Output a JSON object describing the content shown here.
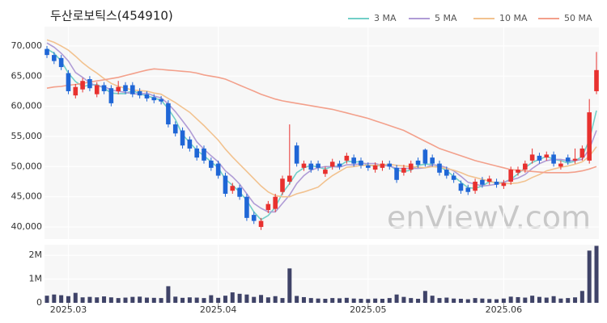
{
  "chart_data": {
    "type": "candlestick",
    "title": "두산로보틱스(454910)",
    "watermark": "enViewV.com",
    "categories": [
      null,
      null,
      null,
      "2025.03",
      null,
      null,
      null,
      null,
      null,
      null,
      null,
      null,
      null,
      null,
      null,
      null,
      null,
      null,
      null,
      null,
      null,
      null,
      null,
      null,
      "2025.04",
      null,
      null,
      null,
      null,
      null,
      null,
      null,
      null,
      null,
      null,
      null,
      null,
      null,
      null,
      null,
      null,
      null,
      null,
      null,
      null,
      "2025.05",
      null,
      null,
      null,
      null,
      null,
      null,
      null,
      null,
      null,
      null,
      null,
      null,
      null,
      null,
      null,
      null,
      null,
      null,
      "2025.06",
      null,
      null,
      null,
      null,
      null,
      null,
      null,
      null,
      null,
      null,
      null,
      null,
      null
    ],
    "up_color": "#e8312f",
    "down_color": "#1f66d6",
    "ohlc": {
      "open": [
        69500,
        68500,
        68000,
        65500,
        61800,
        62800,
        64500,
        62000,
        63500,
        63000,
        62500,
        63500,
        63500,
        62500,
        62000,
        61500,
        61200,
        60500,
        57000,
        56000,
        54500,
        53000,
        53000,
        51000,
        50500,
        48500,
        46000,
        46500,
        45000,
        42000,
        40000,
        42800,
        43000,
        45800,
        47500,
        53500,
        49800,
        50500,
        50500,
        48800,
        50000,
        50500,
        51000,
        51500,
        51000,
        50200,
        49500,
        49800,
        50500,
        49800,
        49000,
        49500,
        51000,
        52800,
        51500,
        50500,
        49500,
        48500,
        47200,
        46500,
        46000,
        47800,
        47500,
        47500,
        46800,
        47500,
        49000,
        49500,
        51000,
        51800,
        51500,
        52000,
        50000,
        51500,
        51000,
        51500,
        51000,
        62500
      ],
      "high": [
        70000,
        69000,
        68500,
        66000,
        63700,
        64700,
        65000,
        64000,
        64000,
        63500,
        64200,
        64000,
        64000,
        63000,
        62500,
        62000,
        61700,
        61000,
        57500,
        56500,
        55000,
        53500,
        53500,
        51500,
        51000,
        49000,
        47300,
        47000,
        45500,
        42500,
        41500,
        44300,
        45500,
        48500,
        57000,
        54000,
        51000,
        51000,
        51000,
        50000,
        51300,
        51000,
        52300,
        52000,
        51500,
        50700,
        50700,
        51000,
        51000,
        50300,
        50300,
        51000,
        51500,
        53000,
        52000,
        51000,
        50000,
        49000,
        47700,
        47000,
        48000,
        48300,
        48500,
        48000,
        47800,
        50000,
        50000,
        51000,
        53000,
        52300,
        52500,
        52500,
        51000,
        52000,
        53000,
        53500,
        61200,
        69000
      ],
      "low": [
        68000,
        67000,
        66000,
        62000,
        61300,
        62300,
        62500,
        61500,
        62000,
        60000,
        62000,
        62000,
        61500,
        61300,
        60800,
        60500,
        60300,
        56500,
        55000,
        53000,
        52500,
        51000,
        50500,
        49300,
        48000,
        45000,
        45500,
        44500,
        41000,
        40500,
        39500,
        42300,
        42500,
        45300,
        47000,
        50000,
        49300,
        49000,
        49300,
        48300,
        49500,
        49500,
        50500,
        50000,
        49700,
        49300,
        49000,
        49300,
        49500,
        47300,
        48500,
        49000,
        49800,
        50000,
        50000,
        48500,
        48000,
        47300,
        45500,
        45300,
        45500,
        46500,
        47000,
        46500,
        46300,
        47000,
        48500,
        49000,
        50500,
        50500,
        51000,
        50000,
        49500,
        50300,
        50500,
        51000,
        50500,
        62000
      ],
      "close": [
        68500,
        67500,
        66500,
        62500,
        63200,
        64200,
        63000,
        63500,
        62500,
        60500,
        63200,
        62500,
        62000,
        61800,
        61300,
        61000,
        60800,
        57000,
        55500,
        53500,
        53000,
        51500,
        51000,
        49800,
        48500,
        45500,
        46800,
        45000,
        41500,
        41000,
        41000,
        43800,
        45000,
        48000,
        48500,
        50500,
        50500,
        49500,
        49800,
        49500,
        50800,
        50000,
        51800,
        50500,
        50200,
        49800,
        50200,
        50500,
        50000,
        47800,
        49800,
        50500,
        50300,
        50500,
        50500,
        49000,
        48500,
        47800,
        46000,
        45800,
        47500,
        47000,
        48000,
        47000,
        47300,
        49500,
        49500,
        50500,
        52000,
        51000,
        52000,
        50500,
        50500,
        50800,
        51300,
        53000,
        59000,
        66000
      ]
    },
    "series": [
      {
        "name": "3 MA",
        "color": "#72cfc8",
        "values": [
          69500,
          68800,
          67500,
          65500,
          64100,
          63300,
          63500,
          63600,
          63000,
          62200,
          62100,
          62100,
          62600,
          62100,
          61700,
          61400,
          61000,
          59600,
          57800,
          55300,
          54000,
          52700,
          51800,
          50800,
          49800,
          47900,
          46900,
          45800,
          44400,
          42500,
          41200,
          41900,
          43300,
          45600,
          47200,
          49000,
          49800,
          50200,
          49900,
          49600,
          50000,
          50100,
          50900,
          50800,
          50800,
          50200,
          50100,
          50200,
          50200,
          49400,
          49200,
          49400,
          50200,
          50400,
          50400,
          50000,
          49300,
          48400,
          47400,
          46500,
          46400,
          46800,
          47500,
          47300,
          47400,
          47900,
          48800,
          49800,
          50700,
          51200,
          51700,
          51200,
          51000,
          50600,
          50900,
          51700,
          54400,
          59300
        ]
      },
      {
        "name": "5 MA",
        "color": "#b09cd6",
        "values": [
          70500,
          69800,
          68800,
          67500,
          65600,
          64800,
          63900,
          63300,
          63300,
          62700,
          62500,
          62300,
          62100,
          62000,
          62200,
          61700,
          61400,
          60400,
          59100,
          57600,
          56000,
          54100,
          52900,
          51800,
          50800,
          49300,
          48300,
          47100,
          45500,
          43900,
          43100,
          42500,
          42500,
          43900,
          45300,
          47200,
          48500,
          49400,
          49800,
          50000,
          50000,
          49900,
          50300,
          50300,
          50500,
          50500,
          50500,
          50200,
          50100,
          49700,
          49700,
          49700,
          49700,
          49800,
          50300,
          50200,
          49800,
          49300,
          48400,
          47400,
          47100,
          46800,
          46900,
          47100,
          47400,
          47800,
          48100,
          48700,
          49700,
          50500,
          51000,
          51200,
          51200,
          51000,
          51000,
          51200,
          52900,
          56000
        ]
      },
      {
        "name": "10 MA",
        "color": "#f2c28f",
        "values": [
          71000,
          70600,
          70000,
          69300,
          68300,
          67200,
          66300,
          65500,
          64600,
          63800,
          63300,
          63000,
          62700,
          62600,
          62500,
          62200,
          62000,
          61300,
          60600,
          59800,
          59000,
          57900,
          56800,
          55600,
          54400,
          52900,
          51600,
          50400,
          49200,
          48000,
          46800,
          45800,
          45200,
          45000,
          45000,
          45500,
          45800,
          46200,
          46600,
          47600,
          48500,
          49200,
          49900,
          50000,
          50200,
          50200,
          50200,
          50300,
          50400,
          50200,
          50100,
          50000,
          49900,
          49800,
          50000,
          49900,
          49700,
          49400,
          49000,
          48500,
          48200,
          47900,
          47600,
          47300,
          47200,
          47200,
          47300,
          47600,
          48200,
          48700,
          49300,
          49600,
          49900,
          50100,
          50400,
          50800,
          51700,
          53300
        ]
      },
      {
        "name": "50 MA",
        "color": "#f3a08b",
        "values": [
          63000,
          63200,
          63300,
          63500,
          63600,
          63800,
          64000,
          64200,
          64400,
          64600,
          64800,
          65100,
          65400,
          65700,
          66000,
          66200,
          66100,
          66000,
          65900,
          65800,
          65700,
          65500,
          65200,
          65000,
          64800,
          64500,
          64000,
          63500,
          63000,
          62500,
          62000,
          61600,
          61200,
          60900,
          60700,
          60500,
          60300,
          60100,
          59900,
          59700,
          59500,
          59200,
          58900,
          58600,
          58300,
          58000,
          57600,
          57200,
          56800,
          56400,
          56000,
          55400,
          54800,
          54200,
          53600,
          53000,
          52600,
          52200,
          51800,
          51400,
          51000,
          50700,
          50400,
          50100,
          49800,
          49500,
          49400,
          49300,
          49200,
          49100,
          49000,
          49000,
          49000,
          49000,
          49100,
          49300,
          49600,
          50000
        ]
      }
    ],
    "ylim": [
      38000,
      73200
    ],
    "yticks": [
      {
        "value": 40000,
        "label": "40,000"
      },
      {
        "value": 45000,
        "label": "45,000"
      },
      {
        "value": 50000,
        "label": "50,000"
      },
      {
        "value": 55000,
        "label": "55,000"
      },
      {
        "value": 60000,
        "label": "60,000"
      },
      {
        "value": 65000,
        "label": "65,000"
      },
      {
        "value": 70000,
        "label": "70,000"
      }
    ],
    "grid": true,
    "legend": "top-right",
    "volume": {
      "color": "#3f4368",
      "values": [
        300000,
        350000,
        320000,
        280000,
        420000,
        230000,
        250000,
        230000,
        270000,
        230000,
        200000,
        220000,
        250000,
        260000,
        220000,
        210000,
        200000,
        700000,
        260000,
        210000,
        230000,
        220000,
        200000,
        320000,
        210000,
        300000,
        440000,
        380000,
        350000,
        250000,
        330000,
        230000,
        280000,
        200000,
        1450000,
        290000,
        240000,
        200000,
        180000,
        170000,
        200000,
        190000,
        210000,
        180000,
        170000,
        160000,
        180000,
        170000,
        200000,
        350000,
        250000,
        200000,
        170000,
        500000,
        300000,
        200000,
        220000,
        180000,
        170000,
        150000,
        200000,
        180000,
        160000,
        150000,
        180000,
        260000,
        240000,
        220000,
        300000,
        250000,
        220000,
        280000,
        180000,
        200000,
        230000,
        500000,
        2200000,
        2400000
      ],
      "ylim": [
        0,
        2450000
      ],
      "yticks": [
        0,
        {
          "value": 1000000,
          "label": "1M"
        },
        {
          "value": 2000000,
          "label": "2M"
        }
      ]
    }
  }
}
